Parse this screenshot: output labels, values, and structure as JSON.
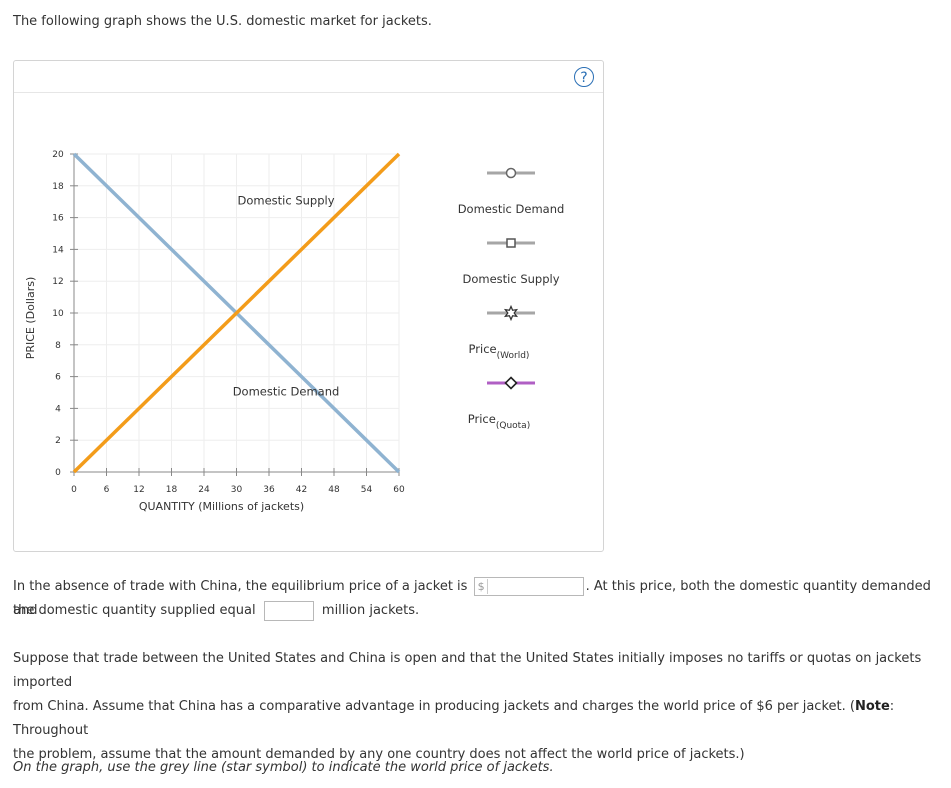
{
  "intro": "The following graph shows the U.S. domestic market for jackets.",
  "help_symbol": "?",
  "chart_data": {
    "type": "line",
    "xlabel": "QUANTITY (Millions of jackets)",
    "ylabel": "PRICE (Dollars)",
    "xlim": [
      0,
      60
    ],
    "ylim": [
      0,
      20
    ],
    "x_ticks": [
      "0",
      "6",
      "12",
      "18",
      "24",
      "30",
      "36",
      "42",
      "48",
      "54",
      "60"
    ],
    "y_ticks": [
      "0",
      "2",
      "4",
      "6",
      "8",
      "10",
      "12",
      "14",
      "16",
      "18",
      "20"
    ],
    "series": [
      {
        "name": "Domestic Demand",
        "color": "#8fb3d1",
        "points": [
          [
            0,
            20
          ],
          [
            60,
            0
          ]
        ]
      },
      {
        "name": "Domestic Supply",
        "color": "#f39c1a",
        "points": [
          [
            0,
            0
          ],
          [
            60,
            20
          ]
        ]
      }
    ],
    "curve_labels": [
      {
        "text": "Domestic Supply",
        "x": 48,
        "y": 17
      },
      {
        "text": "Domestic Demand",
        "x": 48,
        "y": 5
      }
    ],
    "grid": true
  },
  "legend": [
    {
      "label": "Domestic Demand",
      "sub": "",
      "marker": "circle",
      "color": "#a6a6a6"
    },
    {
      "label": "Domestic Supply",
      "sub": "",
      "marker": "square",
      "color": "#a6a6a6"
    },
    {
      "label": "Price",
      "sub": "(World)",
      "marker": "star",
      "color": "#a6a6a6"
    },
    {
      "label": "Price",
      "sub": "(Quota)",
      "marker": "diamond",
      "color": "#b05fc4"
    }
  ],
  "question1": {
    "part1": "In the absence of trade with China, the equilibrium price of a jacket is",
    "currency_symbol": "$",
    "price_value": "",
    "part2": ". At this price, both the domestic quantity demanded and",
    "part3": "the domestic quantity supplied equal",
    "quantity_value": "",
    "part4": "million jackets."
  },
  "paragraph": {
    "text1": "Suppose that trade between the United States and China is open and that the United States initially imposes no tariffs or quotas on jackets imported",
    "text2": "from China. Assume that China has a comparative advantage in producing jackets and charges the world price of $6 per jacket. (",
    "note_label": "Note",
    "text3": ": Throughout",
    "text4": "the problem, assume that the amount demanded by any one country does not affect the world price of jackets.)"
  },
  "instruction": "On the graph, use the grey line (star symbol) to indicate the world price of jackets."
}
